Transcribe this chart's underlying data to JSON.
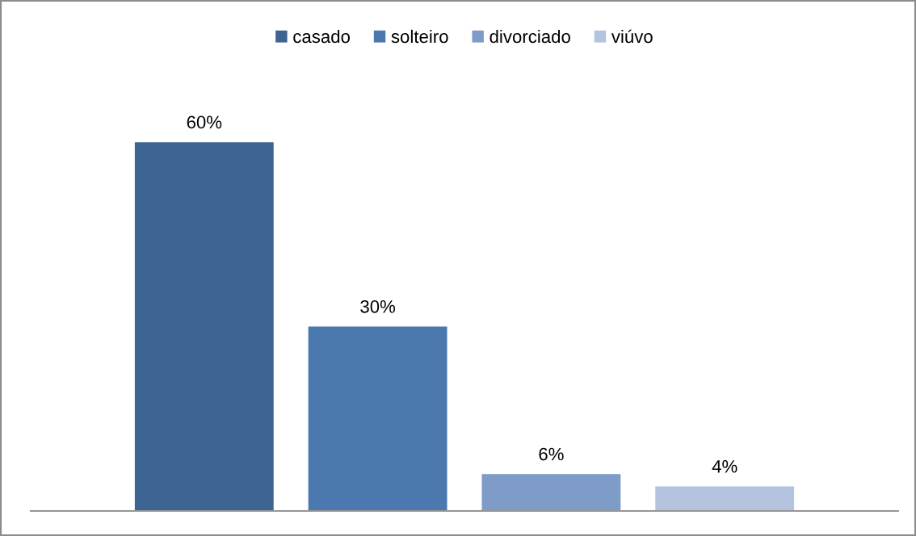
{
  "chart_data": {
    "type": "bar",
    "categories": [
      null
    ],
    "series": [
      {
        "name": "casado",
        "color": "#3e6494",
        "values": [
          60
        ],
        "value_labels": [
          "60%"
        ]
      },
      {
        "name": "solteiro",
        "color": "#4a78af",
        "values": [
          30
        ],
        "value_labels": [
          "30%"
        ]
      },
      {
        "name": "divorciado",
        "color": "#7e9cc7",
        "values": [
          6
        ],
        "value_labels": [
          "6%"
        ]
      },
      {
        "name": "viúvo",
        "color": "#b4c4df",
        "values": [
          4
        ],
        "value_labels": [
          "4%"
        ]
      }
    ],
    "legend": "top",
    "tick_labels": false
  }
}
